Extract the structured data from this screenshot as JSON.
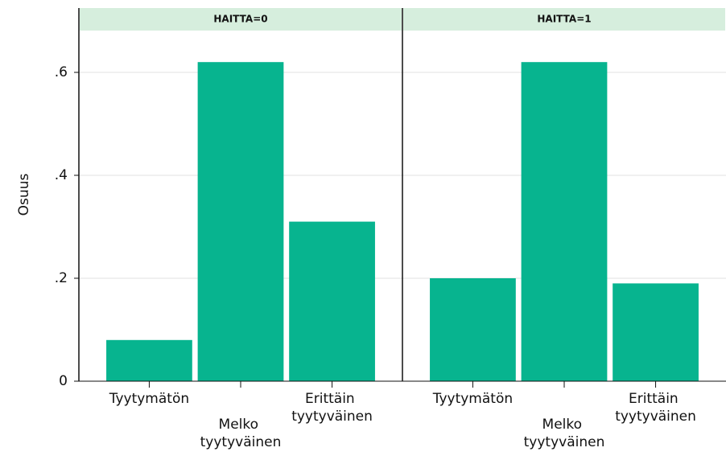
{
  "chart_data": [
    {
      "type": "bar",
      "title": "HAITTA=0",
      "ylabel": "Osuus",
      "categories": [
        "Tyytymätön",
        "Melko tyytyväinen",
        "Erittäin tyytyväinen"
      ],
      "values": [
        0.08,
        0.62,
        0.31
      ],
      "color": "#07b48f",
      "ylim": [
        0,
        0.725
      ],
      "yticks": [
        0,
        {
          "value": 0.2,
          "label": ".2"
        },
        {
          "value": 0.4,
          "label": ".4"
        },
        {
          "value": 0.6,
          "label": ".6"
        }
      ],
      "grid": true
    },
    {
      "type": "bar",
      "title": "HAITTA=1",
      "categories": [
        "Tyytymätön",
        "Melko tyytyväinen",
        "Erittäin tyytyväinen"
      ],
      "values": [
        0.2,
        0.62,
        0.19
      ],
      "color": "#07b48f",
      "ylim": [
        0,
        0.725
      ],
      "yticks": [
        0,
        {
          "value": 0.2,
          "label": ".2"
        },
        {
          "value": 0.4,
          "label": ".4"
        },
        {
          "value": 0.6,
          "label": ".6"
        }
      ],
      "grid": true
    }
  ]
}
